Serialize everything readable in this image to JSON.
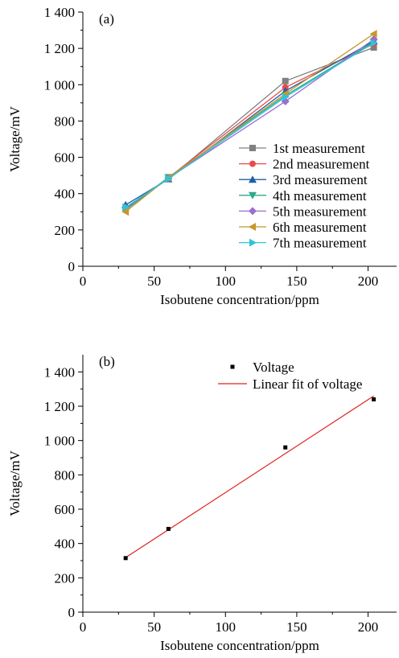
{
  "chart_data": [
    {
      "type": "line",
      "panel_label": "(a)",
      "xlabel": "Isobutene concentration/ppm",
      "ylabel": "Voltage/mV",
      "xlim": [
        0,
        220
      ],
      "ylim": [
        0,
        1400
      ],
      "xticks": [
        0,
        50,
        100,
        150,
        200
      ],
      "yticks": [
        0,
        200,
        400,
        600,
        800,
        1000,
        1200,
        1400
      ],
      "xtick_labels": [
        "0",
        "50",
        "100",
        "150",
        "200"
      ],
      "ytick_labels": [
        "0",
        "200",
        "400",
        "600",
        "800",
        "1 000",
        "1 200",
        "1 400"
      ],
      "x": [
        30,
        60,
        142,
        204
      ],
      "grid": false,
      "legend_position": "right-middle",
      "series": [
        {
          "name": "1st measurement",
          "values": [
            318,
            482,
            1020,
            1205
          ],
          "color": "#808080",
          "marker": "square"
        },
        {
          "name": "2nd measurement",
          "values": [
            312,
            488,
            985,
            1225
          ],
          "color": "#e74c4c",
          "marker": "circle"
        },
        {
          "name": "3rd measurement",
          "values": [
            338,
            480,
            965,
            1240
          ],
          "color": "#1f5fa8",
          "marker": "triangle-up"
        },
        {
          "name": "4th measurement",
          "values": [
            310,
            490,
            940,
            1235
          ],
          "color": "#2ca88a",
          "marker": "triangle-down"
        },
        {
          "name": "5th measurement",
          "values": [
            322,
            485,
            908,
            1250
          ],
          "color": "#9b6fcf",
          "marker": "diamond"
        },
        {
          "name": "6th measurement",
          "values": [
            300,
            488,
            950,
            1280
          ],
          "color": "#c8962a",
          "marker": "triangle-left"
        },
        {
          "name": "7th measurement",
          "values": [
            325,
            482,
            932,
            1230
          ],
          "color": "#2ec4d6",
          "marker": "triangle-right"
        }
      ]
    },
    {
      "type": "scatter",
      "panel_label": "(b)",
      "xlabel": "Isobutene concentration/ppm",
      "ylabel": "Voltage/mV",
      "xlim": [
        0,
        220
      ],
      "ylim": [
        0,
        1500
      ],
      "xticks": [
        0,
        50,
        100,
        150,
        200
      ],
      "yticks": [
        0,
        200,
        400,
        600,
        800,
        1000,
        1200,
        1400
      ],
      "xtick_labels": [
        "0",
        "50",
        "100",
        "150",
        "200"
      ],
      "ytick_labels": [
        "0",
        "200",
        "400",
        "600",
        "800",
        "1 000",
        "1 200",
        "1 400"
      ],
      "grid": false,
      "legend_position": "top-right",
      "series": [
        {
          "name": "Voltage",
          "x": [
            30,
            60,
            142,
            204
          ],
          "values": [
            315,
            485,
            960,
            1240
          ],
          "color": "#000000",
          "marker": "square"
        }
      ],
      "fit": {
        "name": "Linear fit of voltage",
        "x": [
          30,
          204
        ],
        "values": [
          318,
          1260
        ],
        "color": "#e02020"
      }
    }
  ]
}
